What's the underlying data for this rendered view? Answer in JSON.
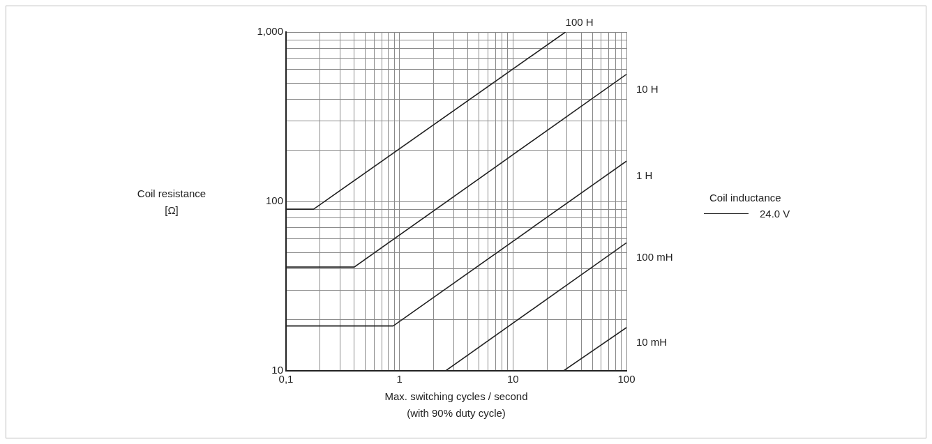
{
  "chart_data": {
    "type": "line",
    "xlabel": "Max. switching cycles / second\n(with 90% duty cycle)",
    "ylabel": "Coil resistance\n[Ω]",
    "legend_title": "Coil inductance",
    "legend": "right",
    "annotations": [
      "24.0 V"
    ],
    "log": "xy",
    "grid": true,
    "xlim": [
      0.1,
      100
    ],
    "ylim": [
      10,
      1000
    ],
    "xticks": [
      {
        "value": 0.1,
        "label": "0,1"
      },
      {
        "value": 0.2,
        "label": null
      },
      {
        "value": 0.3,
        "label": null
      },
      {
        "value": 0.4,
        "label": null
      },
      {
        "value": 0.5,
        "label": null
      },
      {
        "value": 0.6,
        "label": null
      },
      {
        "value": 0.7,
        "label": null
      },
      {
        "value": 0.8,
        "label": null
      },
      {
        "value": 0.9,
        "label": null
      },
      1,
      {
        "value": 2,
        "label": null
      },
      {
        "value": 3,
        "label": null
      },
      {
        "value": 4,
        "label": null
      },
      {
        "value": 5,
        "label": null
      },
      {
        "value": 6,
        "label": null
      },
      {
        "value": 7,
        "label": null
      },
      {
        "value": 8,
        "label": null
      },
      {
        "value": 9,
        "label": null
      },
      10,
      {
        "value": 20,
        "label": null
      },
      {
        "value": 30,
        "label": null
      },
      {
        "value": 40,
        "label": null
      },
      {
        "value": 50,
        "label": null
      },
      {
        "value": 60,
        "label": null
      },
      {
        "value": 70,
        "label": null
      },
      {
        "value": 80,
        "label": null
      },
      {
        "value": 90,
        "label": null
      },
      100
    ],
    "yticks": [
      10,
      {
        "value": 20,
        "label": null
      },
      {
        "value": 30,
        "label": null
      },
      {
        "value": 40,
        "label": null
      },
      {
        "value": 50,
        "label": null
      },
      {
        "value": 60,
        "label": null
      },
      {
        "value": 70,
        "label": null
      },
      {
        "value": 80,
        "label": null
      },
      {
        "value": 90,
        "label": null
      },
      100,
      {
        "value": 200,
        "label": null
      },
      {
        "value": 300,
        "label": null
      },
      {
        "value": 400,
        "label": null
      },
      {
        "value": 500,
        "label": null
      },
      {
        "value": 600,
        "label": null
      },
      {
        "value": 700,
        "label": null
      },
      {
        "value": 800,
        "label": null
      },
      {
        "value": 900,
        "label": null
      },
      {
        "value": 1000,
        "label": "1,000"
      }
    ],
    "series": [
      {
        "name": "100 H",
        "color": "#222222",
        "x": [
          0.1,
          0.175,
          29
        ],
        "values": [
          90,
          90,
          1000
        ]
      },
      {
        "name": "10 H",
        "color": "#222222",
        "x": [
          0.1,
          0.4,
          100
        ],
        "values": [
          41,
          41,
          563
        ]
      },
      {
        "name": "1 H",
        "color": "#222222",
        "x": [
          0.1,
          0.88,
          100
        ],
        "values": [
          18.4,
          18.4,
          173
        ]
      },
      {
        "name": "100 mH",
        "color": "#222222",
        "x": [
          2.55,
          100
        ],
        "values": [
          10,
          57
        ]
      },
      {
        "name": "10 mH",
        "color": "#222222",
        "x": [
          27.9,
          100
        ],
        "values": [
          10,
          18
        ]
      }
    ]
  }
}
